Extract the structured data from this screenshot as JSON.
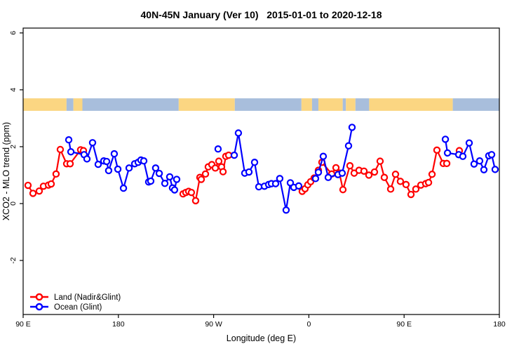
{
  "colors": {
    "land_series": "#ff0000",
    "ocean_series": "#0000ff",
    "land_band": "#fbd682",
    "ocean_band": "#a8bedc",
    "frame": "#000000",
    "background": "#ffffff"
  },
  "legend": {
    "items": [
      {
        "label": "Land (Nadir&Glint)",
        "color": "#ff0000"
      },
      {
        "label": "Ocean (Glint)",
        "color": "#0000ff"
      }
    ],
    "position": "bottom-left-inside"
  },
  "chart_data": {
    "type": "line",
    "title": "40N-45N January (Ver 10)   2015-01-01 to 2020-12-18",
    "xlabel": "Longitude (deg E)",
    "ylabel": "XCO2 - MLO trend (ppm)",
    "x_axis_note": "x is longitude unwrapped eastward from 90E: 90=90E, 180=180, 270=90W, 360=0 (Greenwich), 450=90E, 540=180",
    "xlim": [
      90,
      540
    ],
    "ylim": [
      -3.9,
      6.17
    ],
    "x_ticks": [
      {
        "value": 90,
        "label": "90 E"
      },
      {
        "value": 180,
        "label": "180"
      },
      {
        "value": 270,
        "label": "90 W"
      },
      {
        "value": 360,
        "label": "0"
      },
      {
        "value": 450,
        "label": "90 E"
      },
      {
        "value": 540,
        "label": "180"
      }
    ],
    "y_ticks": [
      {
        "value": 6,
        "label": "6"
      },
      {
        "value": 4,
        "label": "4"
      },
      {
        "value": 2,
        "label": "2"
      },
      {
        "value": 0,
        "label": "0"
      },
      {
        "value": -2,
        "label": "-2"
      }
    ],
    "grid": false,
    "marker": "open-circle",
    "surface_band": {
      "description": "horizontal strip near y=3.5 showing land (yellow) vs ocean (blue) along longitude",
      "value_span": [
        3.26,
        3.7
      ],
      "segments": [
        {
          "from": 90,
          "to": 131,
          "type": "land"
        },
        {
          "from": 131,
          "to": 137.5,
          "type": "ocean"
        },
        {
          "from": 137.5,
          "to": 146,
          "type": "land"
        },
        {
          "from": 146,
          "to": 237,
          "type": "ocean"
        },
        {
          "from": 237,
          "to": 290,
          "type": "land"
        },
        {
          "from": 290,
          "to": 353,
          "type": "ocean"
        },
        {
          "from": 353,
          "to": 363,
          "type": "land"
        },
        {
          "from": 363,
          "to": 369,
          "type": "ocean"
        },
        {
          "from": 369,
          "to": 392,
          "type": "land"
        },
        {
          "from": 392,
          "to": 395,
          "type": "ocean"
        },
        {
          "from": 395,
          "to": 404,
          "type": "land"
        },
        {
          "from": 404,
          "to": 417,
          "type": "ocean"
        },
        {
          "from": 417,
          "to": 496,
          "type": "land"
        },
        {
          "from": 496,
          "to": 540,
          "type": "ocean"
        }
      ]
    },
    "series": [
      {
        "name": "Land (Nadir&Glint)",
        "color": "#ff0000",
        "segments": [
          [
            [
              94.6,
              0.64
            ],
            [
              99.3,
              0.36
            ],
            [
              105.2,
              0.44
            ],
            [
              109.2,
              0.61
            ],
            [
              113.9,
              0.65
            ],
            [
              116.5,
              0.69
            ],
            [
              121.1,
              1.04
            ],
            [
              125.1,
              1.9
            ],
            [
              131.1,
              1.4
            ],
            [
              134.4,
              1.4
            ],
            [
              144.3,
              1.89
            ],
            [
              147.0,
              1.86
            ]
          ],
          [
            [
              241.1,
              0.34
            ],
            [
              243.7,
              0.39
            ],
            [
              246.4,
              0.43
            ],
            [
              249.0,
              0.39
            ],
            [
              253.0,
              0.1
            ],
            [
              257.0,
              0.92
            ],
            [
              258.3,
              0.85
            ],
            [
              262.3,
              1.04
            ],
            [
              264.9,
              1.29
            ],
            [
              268.3,
              1.37
            ],
            [
              271.6,
              1.25
            ],
            [
              274.9,
              1.49
            ],
            [
              277.5,
              1.29
            ],
            [
              278.9,
              1.12
            ],
            [
              281.5,
              1.66
            ],
            [
              284.2,
              1.7
            ]
          ],
          [
            [
              353.7,
              0.43
            ],
            [
              356.4,
              0.52
            ],
            [
              359.0,
              0.66
            ],
            [
              361.7,
              0.77
            ],
            [
              365.0,
              0.9
            ],
            [
              369.0,
              1.17
            ],
            [
              372.3,
              1.45
            ],
            [
              381.6,
              1.04
            ],
            [
              385.6,
              1.26
            ],
            [
              388.9,
              1.07
            ],
            [
              392.2,
              0.49
            ],
            [
              398.8,
              1.33
            ],
            [
              402.8,
              1.07
            ],
            [
              407.4,
              1.17
            ],
            [
              412.1,
              1.14
            ],
            [
              416.7,
              1.0
            ],
            [
              422.0,
              1.11
            ],
            [
              427.3,
              1.49
            ],
            [
              431.3,
              0.92
            ],
            [
              437.3,
              0.51
            ],
            [
              441.9,
              1.03
            ],
            [
              446.5,
              0.78
            ],
            [
              451.8,
              0.67
            ],
            [
              456.5,
              0.32
            ],
            [
              461.1,
              0.51
            ],
            [
              465.8,
              0.65
            ],
            [
              470.4,
              0.7
            ],
            [
              473.1,
              0.74
            ],
            [
              476.4,
              1.03
            ],
            [
              481.0,
              1.88
            ],
            [
              487.0,
              1.41
            ],
            [
              490.3,
              1.41
            ]
          ],
          [
            [
              502.2,
              1.86
            ]
          ]
        ]
      },
      {
        "name": "Ocean (Glint)",
        "color": "#0000ff",
        "segments": [
          [
            [
              133.1,
              2.24
            ],
            [
              135.1,
              1.82
            ],
            [
              147.6,
              1.72
            ],
            [
              150.3,
              1.57
            ],
            [
              155.6,
              2.14
            ],
            [
              160.9,
              1.38
            ],
            [
              166.2,
              1.5
            ],
            [
              168.9,
              1.48
            ],
            [
              170.8,
              1.16
            ],
            [
              176.1,
              1.75
            ],
            [
              179.5,
              1.21
            ],
            [
              184.8,
              0.54
            ],
            [
              190.1,
              1.25
            ],
            [
              195.4,
              1.4
            ],
            [
              198.7,
              1.45
            ],
            [
              201.3,
              1.53
            ],
            [
              204.0,
              1.5
            ],
            [
              208.6,
              0.76
            ],
            [
              210.6,
              0.79
            ],
            [
              215.2,
              1.25
            ],
            [
              218.6,
              1.06
            ],
            [
              223.9,
              0.71
            ],
            [
              228.5,
              0.94
            ],
            [
              231.1,
              0.55
            ],
            [
              233.1,
              0.48
            ],
            [
              235.1,
              0.85
            ]
          ],
          [
            [
              274.2,
              1.92
            ]
          ],
          [
            [
              289.5,
              1.7
            ],
            [
              293.4,
              2.48
            ],
            [
              299.4,
              1.07
            ],
            [
              303.4,
              1.11
            ],
            [
              308.7,
              1.45
            ],
            [
              312.7,
              0.59
            ],
            [
              318.0,
              0.61
            ],
            [
              322.0,
              0.67
            ],
            [
              324.6,
              0.7
            ],
            [
              328.6,
              0.7
            ],
            [
              332.5,
              0.88
            ],
            [
              338.5,
              -0.23
            ],
            [
              342.5,
              0.73
            ],
            [
              345.8,
              0.57
            ],
            [
              350.4,
              0.62
            ]
          ],
          [
            [
              366.3,
              0.88
            ],
            [
              369.0,
              1.1
            ],
            [
              373.6,
              1.66
            ],
            [
              378.3,
              0.92
            ],
            [
              387.5,
              1.02
            ],
            [
              391.5,
              1.07
            ],
            [
              397.5,
              2.03
            ],
            [
              400.8,
              2.68
            ]
          ],
          [
            [
              489.0,
              2.26
            ],
            [
              491.0,
              1.78
            ],
            [
              501.6,
              1.72
            ],
            [
              505.5,
              1.66
            ],
            [
              511.5,
              2.13
            ],
            [
              516.1,
              1.39
            ],
            [
              521.4,
              1.5
            ],
            [
              525.4,
              1.19
            ],
            [
              530.0,
              1.68
            ],
            [
              532.7,
              1.72
            ],
            [
              536.0,
              1.2
            ]
          ]
        ]
      }
    ]
  }
}
